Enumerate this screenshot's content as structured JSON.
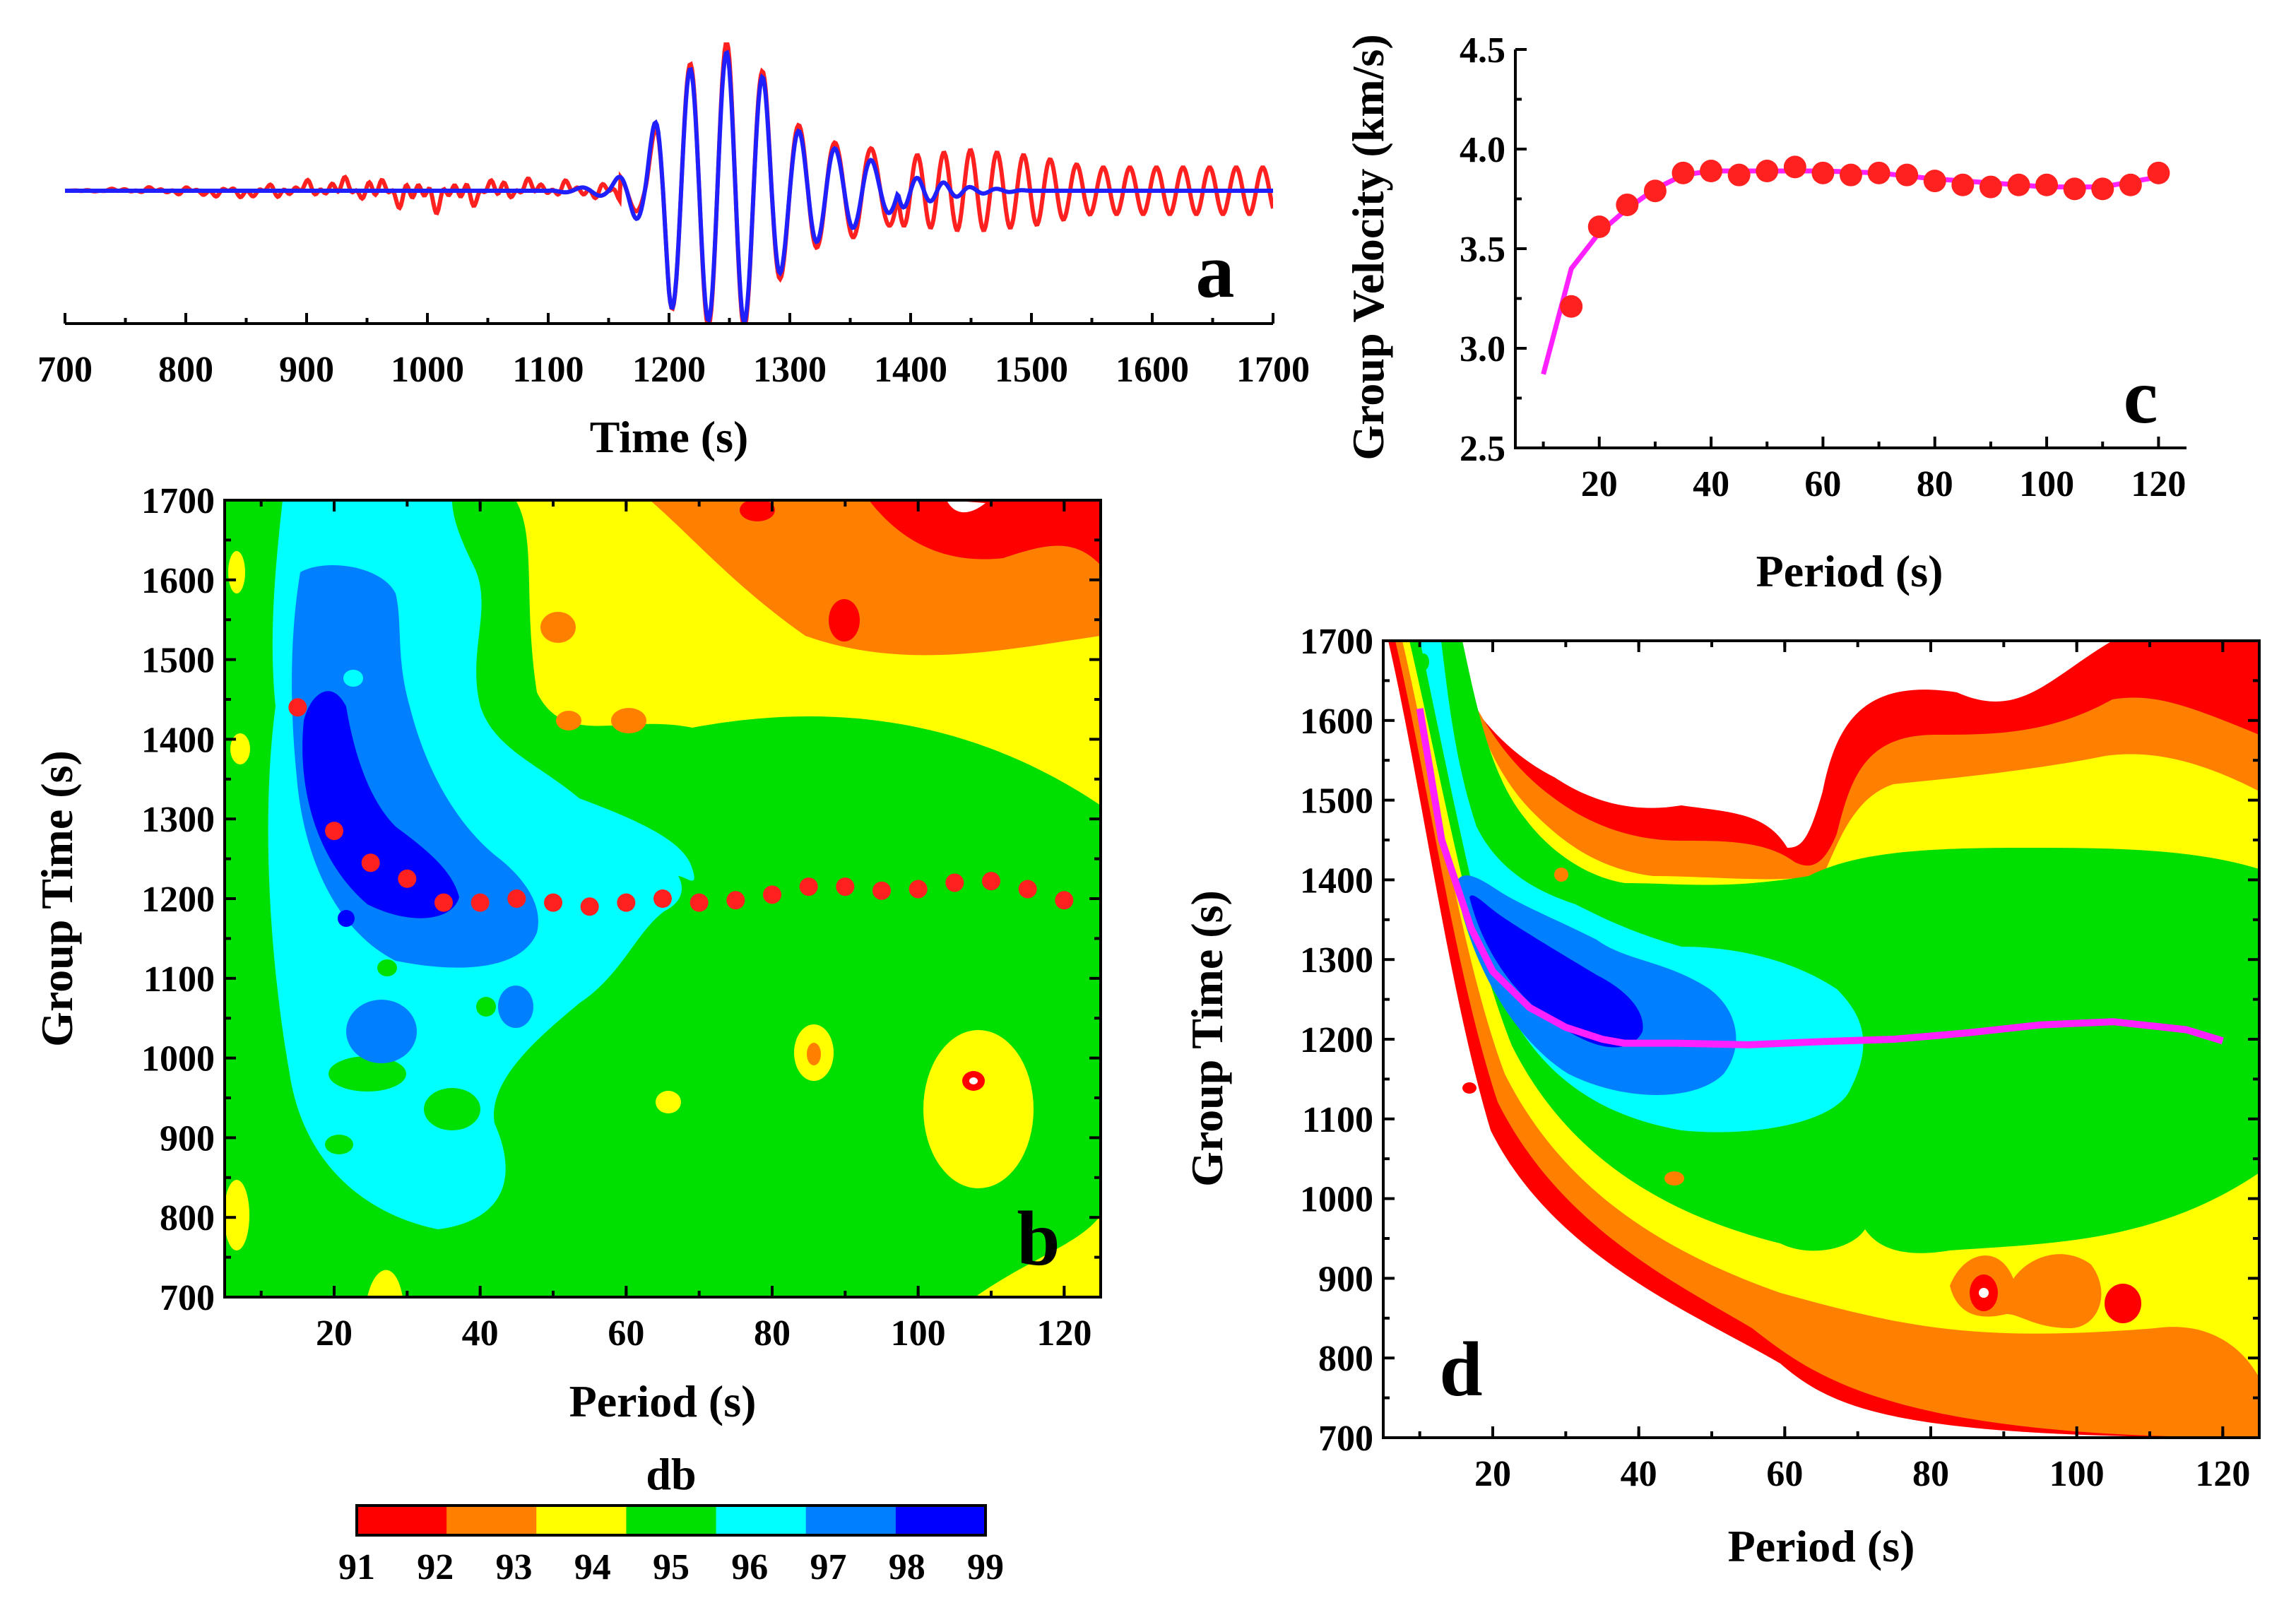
{
  "colors": {
    "db_levels": [
      "#ff0000",
      "#ff8000",
      "#ffff00",
      "#00e000",
      "#00ffff",
      "#0080ff",
      "#0000ff"
    ],
    "observed": "#ff2020",
    "filtered": "#2020ff",
    "curve": "#ff20ff",
    "points": "#ff2020"
  },
  "chart_data": [
    {
      "id": "a",
      "type": "line",
      "panel_label": "a",
      "xlabel": "Time (s)",
      "xlim": [
        700,
        1700
      ],
      "xticks": [
        700,
        800,
        900,
        1000,
        1100,
        1200,
        1300,
        1400,
        1500,
        1600,
        1700
      ],
      "series": [
        {
          "style": "red",
          "x": [
            700,
            800,
            900,
            1000,
            1100,
            1150,
            1180,
            1200,
            1220,
            1240,
            1250,
            1260,
            1280,
            1300,
            1320,
            1340,
            1360,
            1380,
            1400,
            1450,
            1500,
            1550,
            1600,
            1650,
            1700
          ],
          "y": [
            0,
            0.05,
            0.1,
            0.2,
            0.1,
            0.1,
            0.2,
            1.0,
            1.1,
            1.2,
            1.3,
            1.2,
            1.0,
            0.6,
            0.5,
            0.4,
            0.4,
            0.3,
            0.3,
            0.35,
            0.3,
            0.2,
            0.2,
            0.2,
            0.2
          ]
        },
        {
          "style": "blue",
          "x": [
            700,
            800,
            900,
            1000,
            1100,
            1150,
            1180,
            1200,
            1220,
            1240,
            1250,
            1260,
            1280,
            1300,
            1320,
            1340,
            1360,
            1380,
            1400,
            1450,
            1500,
            1550,
            1600,
            1650,
            1700
          ],
          "y": [
            0,
            0,
            0,
            0,
            0,
            0.05,
            0.3,
            1.0,
            1.05,
            1.15,
            1.2,
            1.15,
            0.95,
            0.55,
            0.45,
            0.35,
            0.3,
            0.2,
            0.12,
            0.03,
            0,
            0,
            0,
            0,
            0
          ]
        }
      ]
    },
    {
      "id": "b",
      "type": "heatmap",
      "panel_label": "b",
      "xlabel": "Period (s)",
      "ylabel": "Group Time (s)",
      "xlim": [
        5,
        125
      ],
      "ylim": [
        700,
        1700
      ],
      "xticks": [
        20,
        40,
        60,
        80,
        100,
        120
      ],
      "yticks": [
        700,
        800,
        900,
        1000,
        1100,
        1200,
        1300,
        1400,
        1500,
        1600,
        1700
      ],
      "points": {
        "x": [
          15,
          20,
          25,
          30,
          35,
          40,
          45,
          50,
          55,
          60,
          65,
          70,
          75,
          80,
          85,
          90,
          95,
          100,
          105,
          110,
          115,
          120
        ],
        "y": [
          1440,
          1285,
          1245,
          1225,
          1195,
          1195,
          1200,
          1195,
          1190,
          1195,
          1200,
          1195,
          1198,
          1205,
          1215,
          1215,
          1210,
          1212,
          1220,
          1222,
          1212,
          1198
        ]
      }
    },
    {
      "id": "c",
      "type": "scatter",
      "panel_label": "c",
      "xlabel": "Period (s)",
      "ylabel": "Group Velocity (km/s)",
      "xlim": [
        5,
        125
      ],
      "ylim": [
        2.5,
        4.5
      ],
      "xticks": [
        20,
        40,
        60,
        80,
        100,
        120
      ],
      "yticks": [
        2.5,
        3.0,
        3.5,
        4.0,
        4.5
      ],
      "points": {
        "x": [
          15,
          20,
          25,
          30,
          35,
          40,
          45,
          50,
          55,
          60,
          65,
          70,
          75,
          80,
          85,
          90,
          95,
          100,
          105,
          110,
          115,
          120
        ],
        "y": [
          3.21,
          3.61,
          3.72,
          3.79,
          3.88,
          3.89,
          3.87,
          3.89,
          3.91,
          3.88,
          3.87,
          3.88,
          3.87,
          3.84,
          3.82,
          3.81,
          3.82,
          3.82,
          3.8,
          3.8,
          3.82,
          3.88
        ]
      },
      "line": {
        "x": [
          10,
          15,
          20,
          25,
          30,
          35,
          40,
          50,
          60,
          70,
          80,
          90,
          100,
          110,
          120
        ],
        "y": [
          2.87,
          3.4,
          3.58,
          3.7,
          3.8,
          3.87,
          3.89,
          3.89,
          3.89,
          3.88,
          3.85,
          3.83,
          3.81,
          3.81,
          3.86
        ]
      }
    },
    {
      "id": "d",
      "type": "heatmap",
      "panel_label": "d",
      "xlabel": "Period (s)",
      "ylabel": "Group Time (s)",
      "xlim": [
        5,
        125
      ],
      "ylim": [
        700,
        1700
      ],
      "xticks": [
        20,
        40,
        60,
        80,
        100,
        120
      ],
      "yticks": [
        700,
        800,
        900,
        1000,
        1100,
        1200,
        1300,
        1400,
        1500,
        1600,
        1700
      ],
      "curve": {
        "x": [
          10,
          13,
          17,
          20,
          25,
          30,
          35,
          38,
          45,
          55,
          65,
          75,
          85,
          95,
          105,
          115,
          120
        ],
        "y": [
          1615,
          1450,
          1340,
          1285,
          1240,
          1215,
          1200,
          1195,
          1195,
          1193,
          1197,
          1200,
          1208,
          1218,
          1222,
          1212,
          1198
        ]
      }
    }
  ],
  "colorbar": {
    "title": "db",
    "ticks": [
      "91",
      "92",
      "93",
      "94",
      "95",
      "96",
      "97",
      "98",
      "99"
    ]
  }
}
